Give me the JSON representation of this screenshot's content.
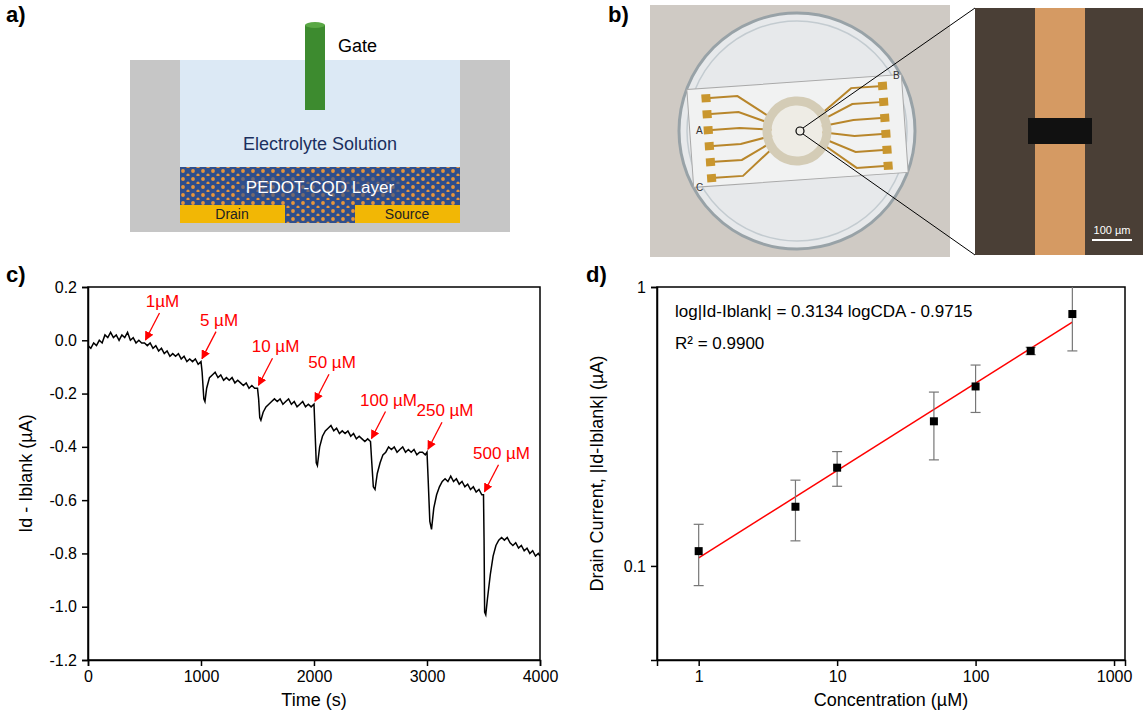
{
  "panel_a": {
    "panel_label": "a)",
    "labels": {
      "gate": "Gate",
      "electrolyte": "Electrolyte Solution",
      "layer": "PEDOT-CQD Layer",
      "drain": "Drain",
      "source": "Source"
    }
  },
  "panel_b": {
    "panel_label": "b)",
    "chip_labels": [
      "A",
      "B",
      "C"
    ],
    "scale_bar": "100 µm"
  },
  "chart_data": [
    {
      "type": "line",
      "panel_label": "c)",
      "xlabel": "Time (s)",
      "ylabel": "Id - Iblank (µA)",
      "xlim": [
        0,
        4000
      ],
      "xticks": [
        0,
        1000,
        2000,
        3000,
        4000
      ],
      "ylim": [
        -1.2,
        0.2
      ],
      "yticks": [
        -1.2,
        {
          "value": -1,
          "label": "-1.0"
        },
        -0.8,
        -0.6,
        -0.4,
        -0.2,
        {
          "value": 0,
          "label": "0.0"
        },
        0.2
      ],
      "color": "#000000",
      "x": [
        0,
        25,
        50,
        75,
        100,
        125,
        150,
        175,
        200,
        225,
        250,
        275,
        300,
        325,
        350,
        375,
        400,
        425,
        450,
        475,
        500,
        525,
        550,
        575,
        600,
        625,
        650,
        675,
        700,
        725,
        750,
        775,
        800,
        825,
        850,
        875,
        900,
        925,
        950,
        975,
        1000,
        1010,
        1025,
        1035,
        1050,
        1075,
        1100,
        1125,
        1150,
        1175,
        1200,
        1225,
        1250,
        1275,
        1300,
        1325,
        1350,
        1375,
        1400,
        1425,
        1450,
        1475,
        1500,
        1510,
        1520,
        1530,
        1550,
        1575,
        1600,
        1625,
        1650,
        1675,
        1700,
        1725,
        1750,
        1775,
        1800,
        1825,
        1850,
        1875,
        1900,
        1925,
        1950,
        1975,
        2000,
        2010,
        2020,
        2030,
        2050,
        2075,
        2100,
        2125,
        2150,
        2175,
        2200,
        2225,
        2250,
        2275,
        2300,
        2325,
        2350,
        2375,
        2400,
        2425,
        2450,
        2475,
        2500,
        2510,
        2525,
        2540,
        2560,
        2585,
        2610,
        2635,
        2660,
        2685,
        2710,
        2735,
        2760,
        2785,
        2810,
        2835,
        2860,
        2885,
        2910,
        2935,
        2960,
        2985,
        3000,
        3010,
        3025,
        3040,
        3060,
        3085,
        3110,
        3135,
        3160,
        3185,
        3210,
        3235,
        3260,
        3285,
        3310,
        3335,
        3360,
        3385,
        3410,
        3435,
        3460,
        3485,
        3500,
        3505,
        3510,
        3520,
        3535,
        3560,
        3585,
        3610,
        3635,
        3660,
        3685,
        3710,
        3735,
        3760,
        3785,
        3810,
        3835,
        3860,
        3885,
        3910,
        3935,
        3960,
        3985,
        4000
      ],
      "values": [
        -0.02,
        -0.03,
        -0.01,
        -0.02,
        0,
        -0.01,
        0.02,
        0.01,
        0.03,
        0.01,
        0.02,
        0,
        0.02,
        0.01,
        0.03,
        0,
        0.01,
        -0.01,
        0,
        -0.01,
        -0.01,
        -0.02,
        -0.01,
        -0.03,
        -0.02,
        -0.04,
        -0.03,
        -0.05,
        -0.04,
        -0.06,
        -0.05,
        -0.06,
        -0.05,
        -0.07,
        -0.06,
        -0.08,
        -0.07,
        -0.08,
        -0.07,
        -0.09,
        -0.08,
        -0.12,
        -0.22,
        -0.23,
        -0.18,
        -0.14,
        -0.13,
        -0.12,
        -0.14,
        -0.13,
        -0.15,
        -0.14,
        -0.15,
        -0.14,
        -0.16,
        -0.15,
        -0.16,
        -0.17,
        -0.16,
        -0.18,
        -0.17,
        -0.18,
        -0.18,
        -0.22,
        -0.29,
        -0.3,
        -0.27,
        -0.25,
        -0.24,
        -0.23,
        -0.22,
        -0.23,
        -0.22,
        -0.24,
        -0.23,
        -0.22,
        -0.24,
        -0.23,
        -0.25,
        -0.24,
        -0.23,
        -0.25,
        -0.24,
        -0.25,
        -0.24,
        -0.35,
        -0.46,
        -0.47,
        -0.4,
        -0.36,
        -0.34,
        -0.33,
        -0.32,
        -0.34,
        -0.33,
        -0.35,
        -0.34,
        -0.35,
        -0.34,
        -0.36,
        -0.35,
        -0.37,
        -0.36,
        -0.37,
        -0.38,
        -0.37,
        -0.38,
        -0.45,
        -0.55,
        -0.56,
        -0.5,
        -0.46,
        -0.43,
        -0.42,
        -0.4,
        -0.41,
        -0.4,
        -0.42,
        -0.41,
        -0.4,
        -0.42,
        -0.41,
        -0.42,
        -0.41,
        -0.43,
        -0.42,
        -0.42,
        -0.43,
        -0.42,
        -0.52,
        -0.68,
        -0.71,
        -0.63,
        -0.58,
        -0.55,
        -0.53,
        -0.52,
        -0.53,
        -0.51,
        -0.53,
        -0.52,
        -0.54,
        -0.53,
        -0.55,
        -0.54,
        -0.56,
        -0.55,
        -0.57,
        -0.56,
        -0.58,
        -0.58,
        -0.75,
        -1.02,
        -1.03,
        -0.97,
        -0.88,
        -0.81,
        -0.77,
        -0.75,
        -0.74,
        -0.75,
        -0.74,
        -0.76,
        -0.77,
        -0.76,
        -0.78,
        -0.77,
        -0.79,
        -0.78,
        -0.8,
        -0.79,
        -0.81,
        -0.8,
        -0.81
      ],
      "annotations": [
        {
          "text": "1µM",
          "x": 500,
          "y": -0.01,
          "color": "#ff0000"
        },
        {
          "text": "5 µM",
          "x": 1000,
          "y": -0.08,
          "color": "#ff0000"
        },
        {
          "text": "10 µM",
          "x": 1500,
          "y": -0.18,
          "color": "#ff0000"
        },
        {
          "text": "50 µM",
          "x": 2000,
          "y": -0.24,
          "color": "#ff0000"
        },
        {
          "text": "100 µM",
          "x": 2500,
          "y": -0.38,
          "color": "#ff0000"
        },
        {
          "text": "250 µM",
          "x": 3000,
          "y": -0.42,
          "color": "#ff0000"
        },
        {
          "text": "500 µM",
          "x": 3500,
          "y": -0.58,
          "color": "#ff0000"
        }
      ]
    },
    {
      "type": "scatter",
      "panel_label": "d)",
      "xlabel": "Concentration (µM)",
      "ylabel": "Drain Current, |Id-Iblank| (µA)",
      "log": true,
      "xlim": [
        0.5,
        1200
      ],
      "xticks": [
        1,
        10,
        100,
        1000
      ],
      "ylim": [
        0.046,
        1
      ],
      "yticks": [
        0.1,
        1
      ],
      "series": [
        {
          "type": "line",
          "color": "#ff0000",
          "x": [
            1,
            500
          ],
          "values": [
            0.1068,
            0.749
          ]
        },
        {
          "type": "scatter",
          "color": "#000000",
          "marker": "square",
          "x": [
            1,
            5,
            10,
            50,
            100,
            250,
            500
          ],
          "values": [
            0.113,
            0.163,
            0.225,
            0.33,
            0.44,
            0.59,
            0.8
          ],
          "errors": [
            0.028,
            0.04,
            0.032,
            0.09,
            0.085,
            0.018,
            0.21
          ]
        }
      ],
      "annotations": [
        {
          "text": "log|Id-Iblank| = 0.3134 logCDA - 0.9715"
        },
        {
          "text": "R² = 0.9900"
        }
      ]
    }
  ]
}
